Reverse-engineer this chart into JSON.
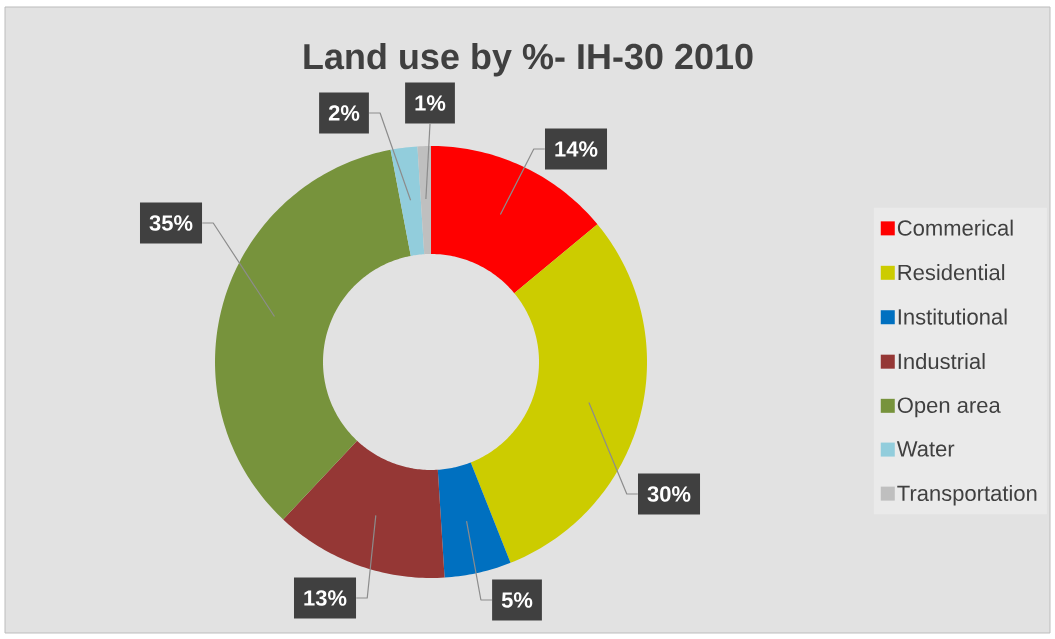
{
  "chart_data": {
    "type": "donut",
    "title": "Land use by %- IH-30 2010",
    "categories": [
      "Commerical",
      "Residential",
      "Institutional",
      "Industrial",
      "Open area",
      "Water",
      "Transportation"
    ],
    "values": [
      14,
      30,
      5,
      13,
      35,
      2,
      1
    ],
    "colors": [
      "#ff0000",
      "#cccc00",
      "#0070c0",
      "#953735",
      "#77933c",
      "#92cddc",
      "#bfbfbf"
    ],
    "value_labels": [
      "14%",
      "30%",
      "5%",
      "13%",
      "35%",
      "2%",
      "1%"
    ],
    "legend": "right"
  }
}
